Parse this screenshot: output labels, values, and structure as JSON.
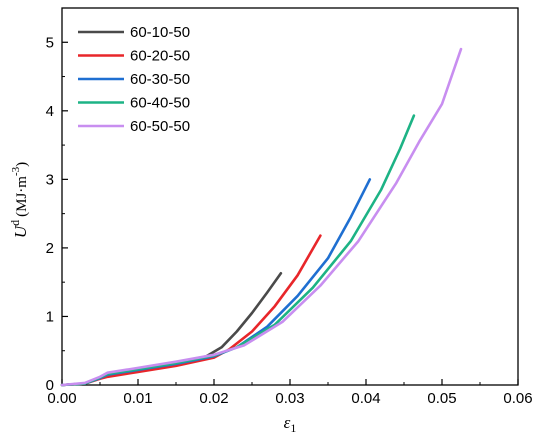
{
  "chart_data": {
    "type": "line",
    "title": "",
    "xlabel": {
      "symbol": "ε",
      "subscript": "1"
    },
    "ylabel": {
      "symbol": "U",
      "superscript": "d",
      "unit": "(MJ·m",
      "unit_exp": "-3",
      "unit_close": ")"
    },
    "xlim": [
      0.0,
      0.06
    ],
    "ylim": [
      0,
      5.5
    ],
    "xticks": [
      0.0,
      0.01,
      0.02,
      0.03,
      0.04,
      0.05,
      0.06
    ],
    "xtick_labels": [
      "0.00",
      "0.01",
      "0.02",
      "0.03",
      "0.04",
      "0.05",
      "0.06"
    ],
    "yticks": [
      0,
      1,
      2,
      3,
      4,
      5
    ],
    "ytick_labels": [
      "0",
      "1",
      "2",
      "3",
      "4",
      "5"
    ],
    "grid": false,
    "legend_position": "top-left",
    "series": [
      {
        "name": "60-10-50",
        "color": "#4a4a4a",
        "points": [
          [
            0.0,
            0.0
          ],
          [
            0.003,
            0.02
          ],
          [
            0.005,
            0.1
          ],
          [
            0.006,
            0.13
          ],
          [
            0.01,
            0.2
          ],
          [
            0.015,
            0.3
          ],
          [
            0.019,
            0.42
          ],
          [
            0.021,
            0.55
          ],
          [
            0.023,
            0.78
          ],
          [
            0.025,
            1.05
          ],
          [
            0.027,
            1.35
          ],
          [
            0.0288,
            1.63
          ]
        ]
      },
      {
        "name": "60-20-50",
        "color": "#e8262a",
        "points": [
          [
            0.0,
            0.0
          ],
          [
            0.003,
            0.02
          ],
          [
            0.005,
            0.09
          ],
          [
            0.006,
            0.12
          ],
          [
            0.01,
            0.19
          ],
          [
            0.015,
            0.28
          ],
          [
            0.02,
            0.4
          ],
          [
            0.022,
            0.52
          ],
          [
            0.025,
            0.78
          ],
          [
            0.028,
            1.15
          ],
          [
            0.031,
            1.6
          ],
          [
            0.034,
            2.18
          ]
        ]
      },
      {
        "name": "60-30-50",
        "color": "#1f6fd1",
        "points": [
          [
            0.0,
            0.0
          ],
          [
            0.003,
            0.02
          ],
          [
            0.005,
            0.1
          ],
          [
            0.006,
            0.15
          ],
          [
            0.01,
            0.22
          ],
          [
            0.015,
            0.31
          ],
          [
            0.02,
            0.42
          ],
          [
            0.023,
            0.55
          ],
          [
            0.027,
            0.85
          ],
          [
            0.031,
            1.3
          ],
          [
            0.035,
            1.85
          ],
          [
            0.038,
            2.45
          ],
          [
            0.0405,
            3.0
          ]
        ]
      },
      {
        "name": "60-40-50",
        "color": "#1db385",
        "points": [
          [
            0.0,
            0.0
          ],
          [
            0.003,
            0.02
          ],
          [
            0.005,
            0.11
          ],
          [
            0.006,
            0.16
          ],
          [
            0.01,
            0.23
          ],
          [
            0.015,
            0.32
          ],
          [
            0.02,
            0.43
          ],
          [
            0.023,
            0.55
          ],
          [
            0.028,
            0.88
          ],
          [
            0.033,
            1.42
          ],
          [
            0.038,
            2.1
          ],
          [
            0.042,
            2.85
          ],
          [
            0.0445,
            3.45
          ],
          [
            0.0463,
            3.93
          ]
        ]
      },
      {
        "name": "60-50-50",
        "color": "#c88ef0",
        "points": [
          [
            0.0,
            0.0
          ],
          [
            0.003,
            0.03
          ],
          [
            0.005,
            0.12
          ],
          [
            0.006,
            0.18
          ],
          [
            0.01,
            0.25
          ],
          [
            0.015,
            0.34
          ],
          [
            0.02,
            0.44
          ],
          [
            0.024,
            0.58
          ],
          [
            0.029,
            0.92
          ],
          [
            0.034,
            1.45
          ],
          [
            0.039,
            2.1
          ],
          [
            0.044,
            2.95
          ],
          [
            0.047,
            3.55
          ],
          [
            0.05,
            4.1
          ],
          [
            0.0525,
            4.9
          ]
        ]
      }
    ]
  }
}
